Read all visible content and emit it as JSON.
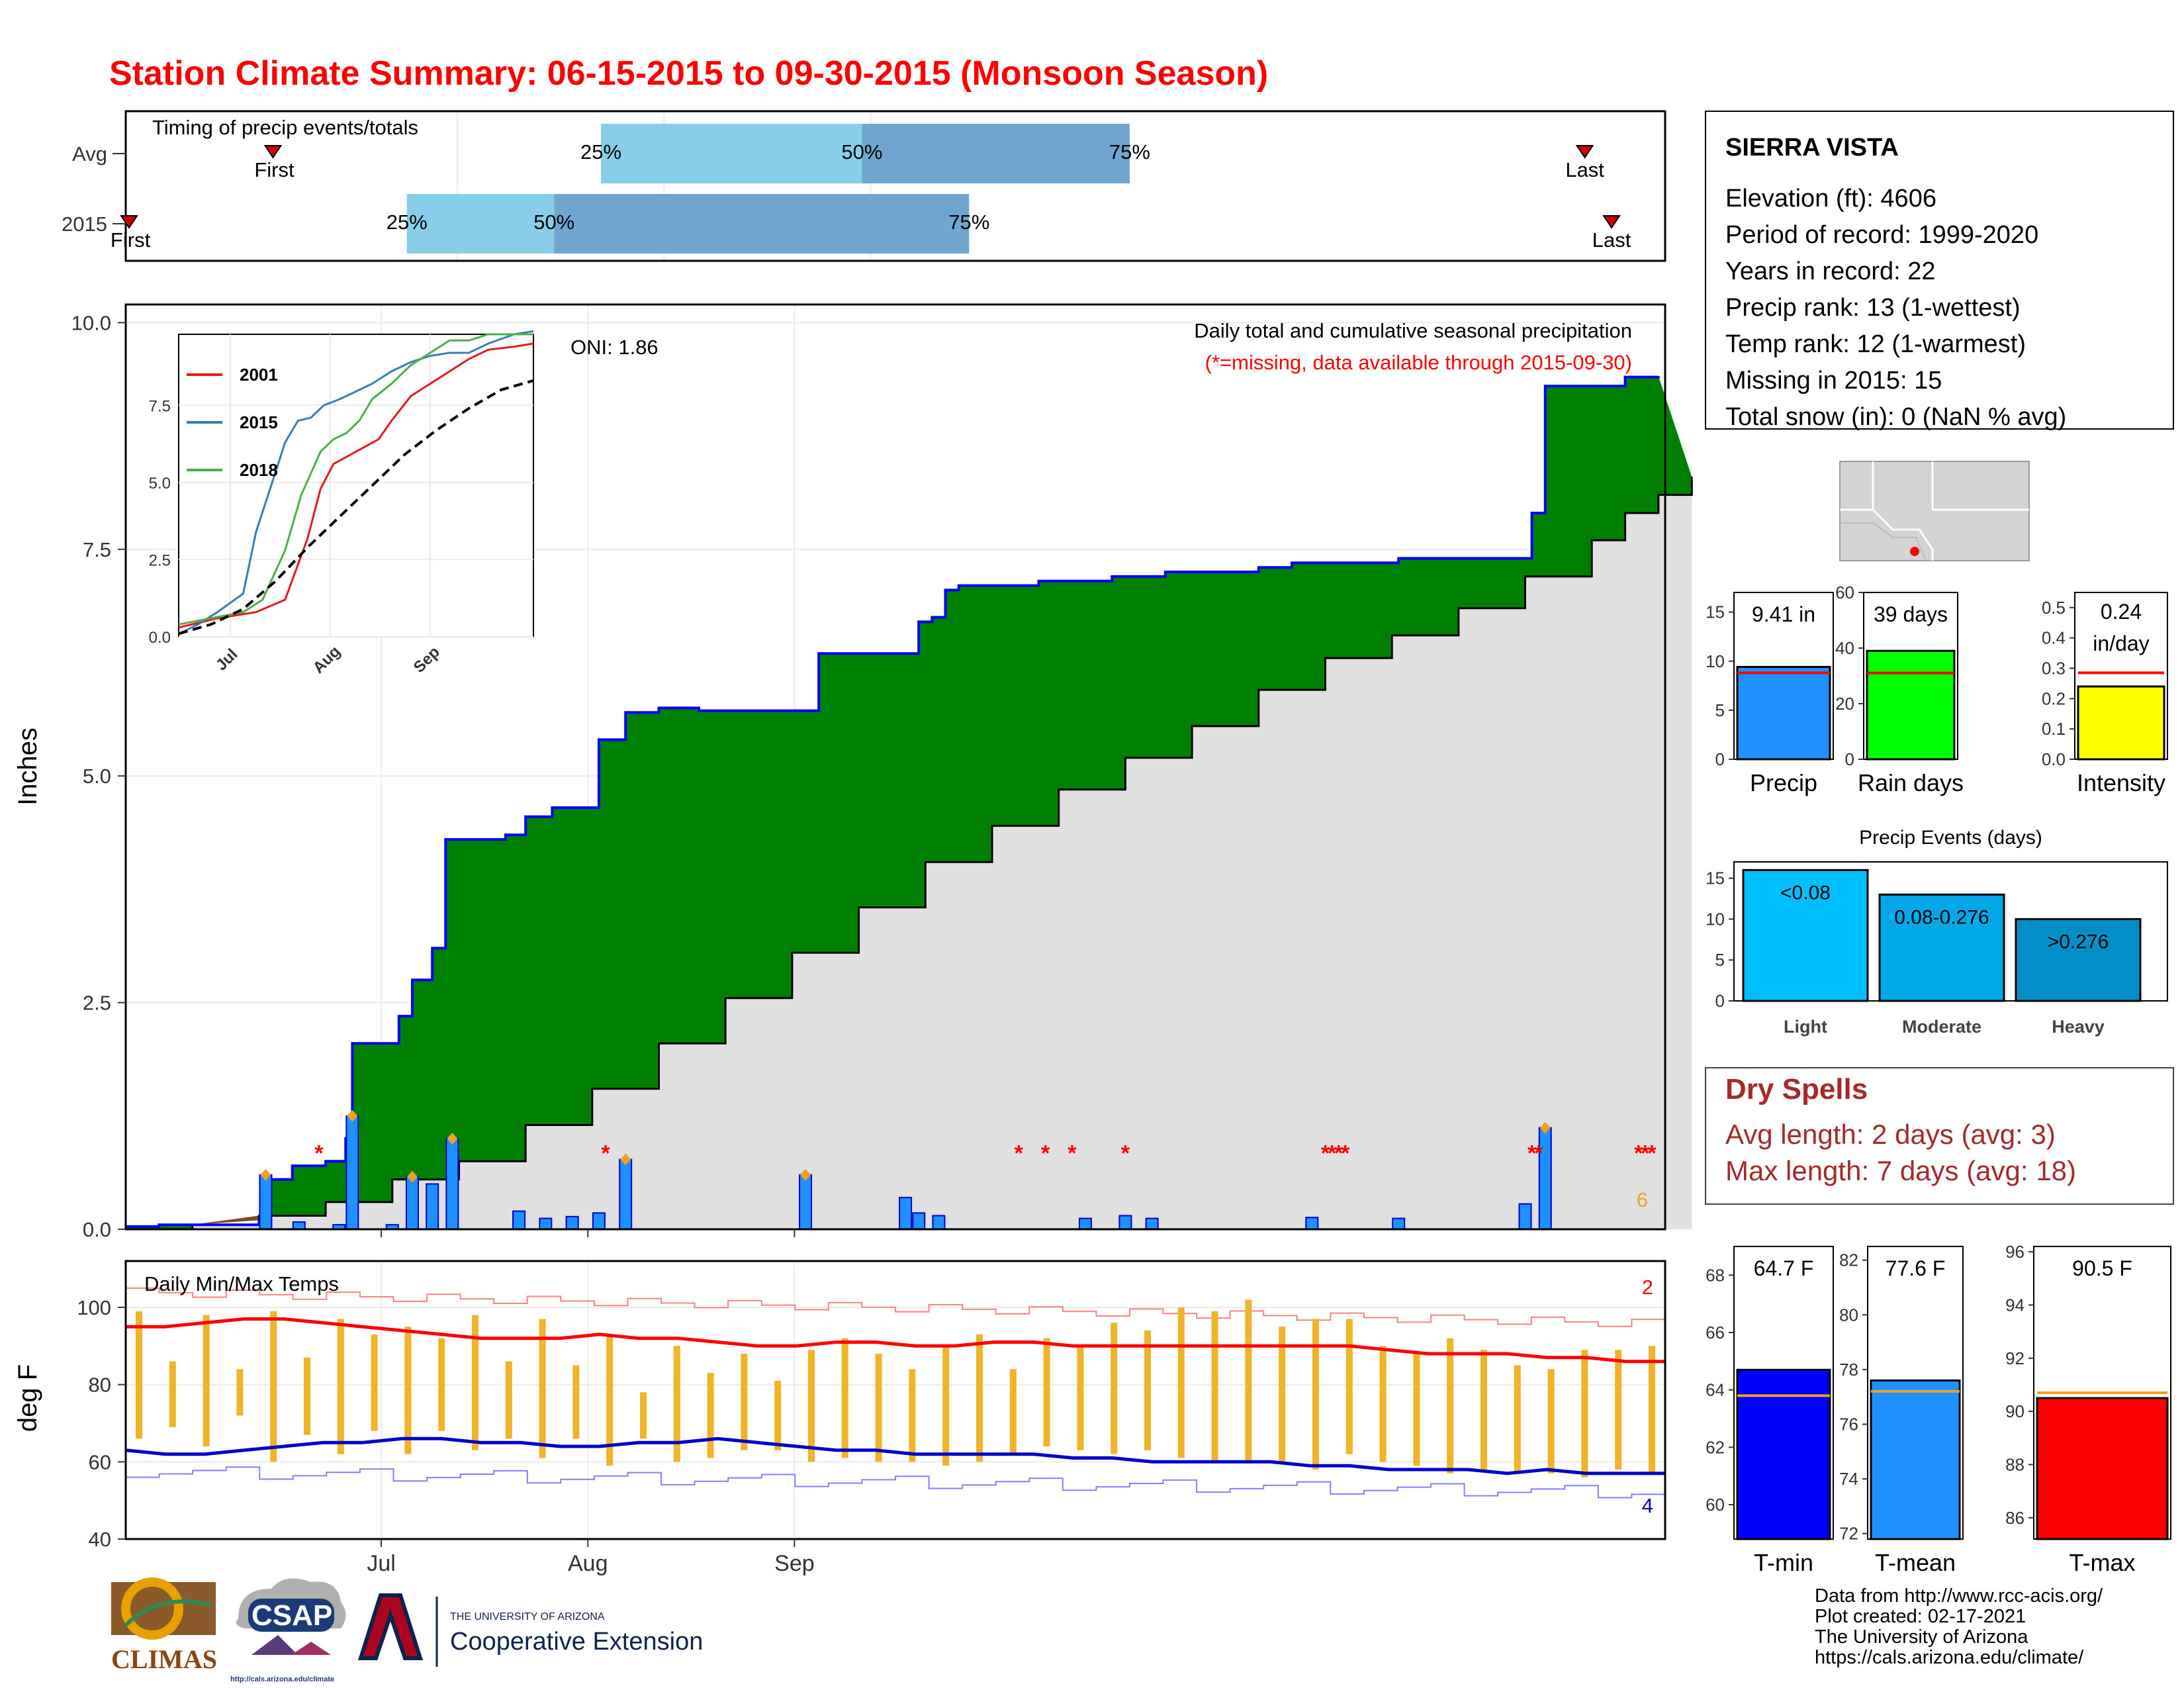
{
  "title": "Station Climate Summary: 06-15-2015 to 09-30-2015 (Monsoon Season)",
  "colors": {
    "title": "#ff0000",
    "precip_fill": "#008000",
    "precip_line": "#0000ff",
    "normal_fill": "#e0e0e0",
    "daily_bar": "#1e90ff",
    "dry_spell": "#a52a2a",
    "tmax": "#ff0000",
    "tmin": "#0000cc",
    "temp_bar": "#f0b429"
  },
  "timing_panel": {
    "label": "Timing of precip events/totals",
    "rows": [
      {
        "label": "Avg",
        "first_day": 22,
        "last_day": 218,
        "q25": 71,
        "q50": 110,
        "q75": 150,
        "first_label": "First",
        "last_label": "Last",
        "q25_label": "25%",
        "q50_label": "50%",
        "q75_label": "75%"
      },
      {
        "label": "2015",
        "first_day": 0.5,
        "last_day": 222,
        "q25": 42,
        "q50": 64,
        "q75": 126,
        "first_label": "First",
        "last_label": "Last",
        "q25_label": "25%",
        "q50_label": "50%",
        "q75_label": "75%"
      }
    ]
  },
  "precip_panel": {
    "ylabel": "Inches",
    "yticks": [
      "0.0",
      "2.5",
      "5.0",
      "7.5",
      "10.0"
    ],
    "ylim": [
      0,
      10.2
    ],
    "header": "Daily total and cumulative seasonal precipitation",
    "subheader": "(*=missing, data available through 2015-09-30)",
    "oni": "ONI: 1.86",
    "count_label": "6",
    "missing_marker": "*",
    "missing_days": [
      29,
      72,
      134,
      138,
      142,
      150,
      180,
      181,
      182,
      183,
      211,
      212,
      227,
      228,
      229
    ]
  },
  "chart_data": [
    {
      "type": "area",
      "title": "Daily total and cumulative seasonal precipitation",
      "ylabel": "Inches",
      "x_label_note": "days since 06-15-2015",
      "series": [
        {
          "name": "2015 cumulative",
          "steps": [
            [
              0,
              0.03
            ],
            [
              5,
              0.05
            ],
            [
              20,
              0.1
            ],
            [
              21,
              0.55
            ],
            [
              25,
              0.7
            ],
            [
              30,
              0.75
            ],
            [
              33,
              1.0
            ],
            [
              34,
              2.05
            ],
            [
              41,
              2.35
            ],
            [
              43,
              2.75
            ],
            [
              46,
              3.1
            ],
            [
              48,
              4.3
            ],
            [
              57,
              4.35
            ],
            [
              60,
              4.55
            ],
            [
              64,
              4.65
            ],
            [
              71,
              5.4
            ],
            [
              75,
              5.7
            ],
            [
              80,
              5.75
            ],
            [
              86,
              5.72
            ],
            [
              104,
              6.35
            ],
            [
              119,
              6.7
            ],
            [
              121,
              6.75
            ],
            [
              123,
              7.05
            ],
            [
              125,
              7.1
            ],
            [
              137,
              7.15
            ],
            [
              148,
              7.2
            ],
            [
              156,
              7.25
            ],
            [
              170,
              7.3
            ],
            [
              175,
              7.35
            ],
            [
              191,
              7.4
            ],
            [
              211,
              7.9
            ],
            [
              213,
              9.3
            ],
            [
              225,
              9.4
            ],
            [
              230,
              9.41
            ]
          ]
        },
        {
          "name": "Average cumulative",
          "steps": [
            [
              0,
              0.0
            ],
            [
              10,
              0.05
            ],
            [
              20,
              0.15
            ],
            [
              30,
              0.3
            ],
            [
              40,
              0.55
            ],
            [
              50,
              0.75
            ],
            [
              60,
              1.15
            ],
            [
              70,
              1.55
            ],
            [
              80,
              2.05
            ],
            [
              90,
              2.55
            ],
            [
              100,
              3.05
            ],
            [
              110,
              3.55
            ],
            [
              120,
              4.05
            ],
            [
              130,
              4.45
            ],
            [
              140,
              4.85
            ],
            [
              150,
              5.2
            ],
            [
              160,
              5.55
            ],
            [
              170,
              5.95
            ],
            [
              180,
              6.3
            ],
            [
              190,
              6.55
            ],
            [
              200,
              6.85
            ],
            [
              210,
              7.2
            ],
            [
              220,
              7.6
            ],
            [
              225,
              7.9
            ],
            [
              230,
              8.1
            ],
            [
              235,
              8.3
            ]
          ]
        },
        {
          "name": "Daily precip",
          "days": [
            21,
            26,
            32,
            34,
            40,
            43,
            46,
            49,
            59,
            63,
            67,
            71,
            75,
            102,
            117,
            119,
            122,
            144,
            150,
            154,
            178,
            191,
            210,
            213
          ],
          "values": [
            0.6,
            0.08,
            0.05,
            1.25,
            0.05,
            0.58,
            0.5,
            1.0,
            0.2,
            0.12,
            0.14,
            0.18,
            0.77,
            0.6,
            0.35,
            0.18,
            0.15,
            0.12,
            0.15,
            0.12,
            0.13,
            0.12,
            0.28,
            1.12
          ]
        }
      ],
      "x_ticks": [
        {
          "label": "Jul",
          "day": 16
        },
        {
          "label": "Aug",
          "day": 47
        },
        {
          "label": "Sep",
          "day": 78
        }
      ],
      "year_ranges": {
        "xlim": [
          0,
          231
        ],
        "ylim": [
          0,
          10.2
        ]
      }
    },
    {
      "type": "line",
      "title": "Cumulative precipitation (inset)",
      "legend": [
        "2001",
        "2015",
        "2018"
      ],
      "legend_colors": [
        "#e41a1c",
        "#377eb8",
        "#4daf4a"
      ],
      "x_ticks": [
        "Jul",
        "Aug",
        "Sep"
      ],
      "yticks": [
        "0.0",
        "2.5",
        "5.0",
        "7.5"
      ],
      "ylim": [
        0,
        9.8
      ],
      "series": [
        {
          "name": "2001",
          "x": [
            0,
            12,
            24,
            33,
            40,
            44,
            48,
            55,
            62,
            66,
            72,
            78,
            84,
            90,
            96,
            104,
            110
          ],
          "y": [
            0.3,
            0.6,
            0.8,
            1.2,
            3.2,
            4.8,
            5.6,
            6.0,
            6.4,
            7.0,
            7.8,
            8.2,
            8.6,
            9.0,
            9.3,
            9.4,
            9.5
          ]
        },
        {
          "name": "2015",
          "x": [
            0,
            6,
            12,
            20,
            24,
            29,
            33,
            37,
            41,
            45,
            50,
            54,
            60,
            66,
            72,
            78,
            84,
            90,
            96,
            104,
            110
          ],
          "y": [
            0.1,
            0.4,
            0.8,
            1.4,
            3.4,
            5.0,
            6.3,
            7.0,
            7.1,
            7.5,
            7.7,
            7.9,
            8.2,
            8.6,
            8.9,
            9.1,
            9.2,
            9.2,
            9.5,
            9.8,
            9.9
          ]
        },
        {
          "name": "2018",
          "x": [
            0,
            10,
            20,
            26,
            33,
            38,
            44,
            48,
            52,
            56,
            60,
            66,
            72,
            78,
            84,
            90,
            96,
            104,
            110
          ],
          "y": [
            0.4,
            0.6,
            0.8,
            1.2,
            2.8,
            4.6,
            6.0,
            6.4,
            6.6,
            7.0,
            7.7,
            8.2,
            8.8,
            9.2,
            9.6,
            9.6,
            9.8,
            9.8,
            9.8
          ]
        },
        {
          "name": "Average",
          "x": [
            0,
            10,
            20,
            30,
            40,
            50,
            60,
            70,
            80,
            90,
            100,
            110
          ],
          "y": [
            0.1,
            0.4,
            0.9,
            1.8,
            2.9,
            3.9,
            4.9,
            5.9,
            6.7,
            7.4,
            8.0,
            8.3
          ]
        }
      ]
    },
    {
      "type": "bar",
      "title": "Precip",
      "categories": [
        "Precip"
      ],
      "values": [
        9.41
      ],
      "average": 8.8,
      "value_label": "9.41 in",
      "yticks": [
        "0",
        "5",
        "10",
        "15"
      ],
      "ylim": [
        0,
        17
      ]
    },
    {
      "type": "bar",
      "title": "Rain days",
      "categories": [
        "Rain days"
      ],
      "values": [
        39
      ],
      "average": 31,
      "value_label": "39 days",
      "yticks": [
        "0",
        "20",
        "40",
        "60"
      ],
      "ylim": [
        0,
        60
      ]
    },
    {
      "type": "bar",
      "title": "Intensity",
      "categories": [
        "Intensity"
      ],
      "values": [
        0.24
      ],
      "average": 0.285,
      "value_label_line1": "0.24",
      "value_label_line2": "in/day",
      "yticks": [
        "0.0",
        "0.1",
        "0.2",
        "0.3",
        "0.4",
        "0.5"
      ],
      "ylim": [
        0,
        0.55
      ]
    },
    {
      "type": "bar",
      "title": "Precip Events (days)",
      "categories": [
        "Light",
        "Moderate",
        "Heavy"
      ],
      "values": [
        16,
        13,
        10
      ],
      "bar_labels": [
        "<0.08",
        "0.08-0.276",
        ">0.276"
      ],
      "yticks": [
        "0",
        "5",
        "10",
        "15"
      ],
      "ylim": [
        0,
        17
      ]
    },
    {
      "type": "bar",
      "title": "T-min",
      "categories": [
        "T-min"
      ],
      "values": [
        64.7
      ],
      "average": 63.8,
      "value_label": "64.7 F",
      "yticks": [
        "60",
        "62",
        "64",
        "66",
        "68"
      ],
      "ylim": [
        58.8,
        69
      ]
    },
    {
      "type": "bar",
      "title": "T-mean",
      "categories": [
        "T-mean"
      ],
      "values": [
        77.6
      ],
      "average": 77.2,
      "value_label": "77.6 F",
      "yticks": [
        "72",
        "74",
        "76",
        "78",
        "80",
        "82"
      ],
      "ylim": [
        71.8,
        82.5
      ]
    },
    {
      "type": "bar",
      "title": "T-max",
      "categories": [
        "T-max"
      ],
      "values": [
        90.5
      ],
      "average": 90.7,
      "value_label": "90.5 F",
      "yticks": [
        "86",
        "88",
        "90",
        "92",
        "94",
        "96"
      ],
      "ylim": [
        85.2,
        96.2
      ]
    },
    {
      "type": "line",
      "title": "Daily Min/Max Temps",
      "ylabel": "deg F",
      "yticks": [
        "40",
        "60",
        "80",
        "100"
      ],
      "ylim": [
        40,
        112
      ],
      "x_ticks": [
        {
          "label": "Jul",
          "day": 16
        },
        {
          "label": "Aug",
          "day": 47
        },
        {
          "label": "Sep",
          "day": 78
        }
      ],
      "corner_labels": {
        "top_right": "2",
        "bottom_right": "4"
      },
      "avg_max": [
        95,
        95,
        96,
        97,
        97,
        96,
        95,
        94,
        93,
        92,
        92,
        92,
        93,
        92,
        92,
        91,
        90,
        90,
        91,
        91,
        90,
        90,
        91,
        91,
        90,
        90,
        90,
        90,
        90,
        90,
        90,
        90,
        89,
        88,
        88,
        88,
        87,
        87,
        86,
        86
      ],
      "avg_min": [
        63,
        62,
        62,
        63,
        64,
        65,
        65,
        66,
        66,
        65,
        65,
        64,
        64,
        65,
        65,
        66,
        65,
        64,
        63,
        63,
        62,
        62,
        62,
        62,
        61,
        61,
        60,
        60,
        60,
        60,
        59,
        59,
        58,
        58,
        58,
        57,
        58,
        57,
        57,
        57
      ],
      "daily_max": [
        99,
        86,
        98,
        84,
        99,
        87,
        97,
        93,
        95,
        92,
        98,
        86,
        97,
        85,
        93,
        78,
        90,
        83,
        88,
        81,
        89,
        92,
        88,
        84,
        90,
        93,
        84,
        92,
        90,
        96,
        94,
        100,
        99,
        102,
        95,
        97,
        97,
        90,
        88,
        92,
        89,
        85,
        84,
        89,
        89,
        90
      ],
      "daily_min": [
        66,
        69,
        64,
        72,
        60,
        67,
        62,
        68,
        62,
        68,
        63,
        66,
        61,
        66,
        59,
        66,
        60,
        61,
        63,
        63,
        60,
        61,
        60,
        60,
        59,
        60,
        62,
        64,
        63,
        62,
        63,
        61,
        60,
        60,
        60,
        58,
        62,
        60,
        59,
        57,
        58,
        57,
        57,
        56,
        58,
        57
      ]
    }
  ],
  "station_box": {
    "name": "SIERRA VISTA",
    "lines": [
      "Elevation (ft): 4606",
      "Period of record: 1999-2020",
      "Years in record: 22",
      "Precip rank: 13 (1-wettest)",
      "Temp rank: 12 (1-warmest)",
      "Missing in 2015: 15",
      "Total snow (in): 0 (NaN % avg)"
    ]
  },
  "dry_spells": {
    "title": "Dry Spells",
    "avg": "Avg length: 2 days (avg: 3)",
    "max": "Max length: 7 days (avg: 18)"
  },
  "temp_panel_label": "Daily Min/Max Temps",
  "logos": {
    "climas": "CLIMAS",
    "csap": "CSAP",
    "csap_url": "http://cals.arizona.edu/climate",
    "ua_line1": "THE UNIVERSITY OF ARIZONA",
    "ua_line2": "Cooperative Extension"
  },
  "credits": [
    "Data from http://www.rcc-acis.org/",
    "Plot created: 02-17-2021",
    "The University of Arizona",
    "https://cals.arizona.edu/climate/"
  ]
}
